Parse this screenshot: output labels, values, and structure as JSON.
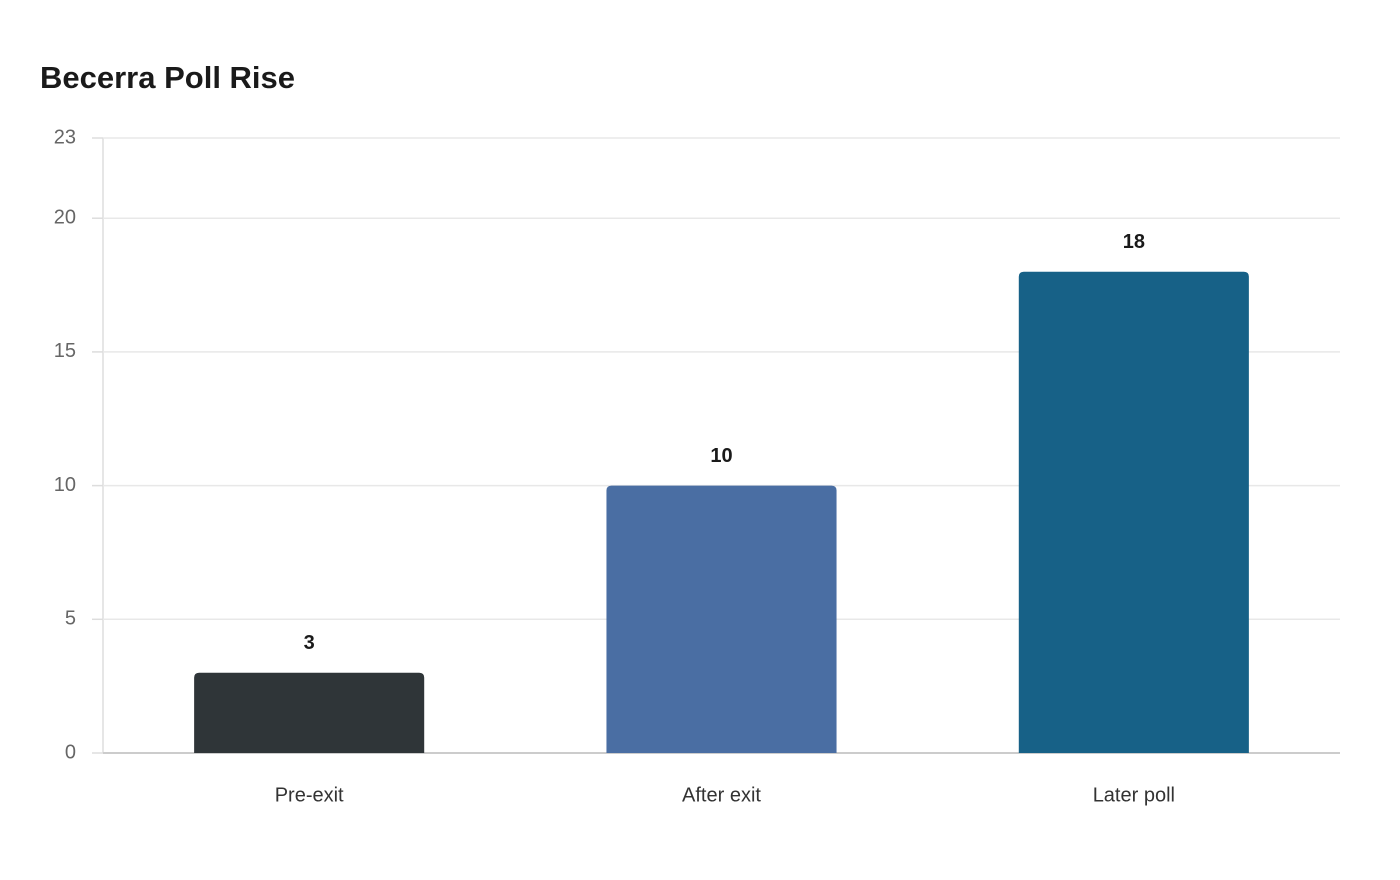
{
  "chart_data": {
    "type": "bar",
    "title": "Becerra Poll Rise",
    "categories": [
      "Pre-exit",
      "After exit",
      "Later poll"
    ],
    "values": [
      3,
      10,
      18
    ],
    "colors": [
      "#2f3538",
      "#4a6ea3",
      "#176187"
    ],
    "ylim": [
      0,
      23
    ],
    "yticks": [
      0,
      5,
      10,
      15,
      20,
      23
    ],
    "grid": true
  }
}
